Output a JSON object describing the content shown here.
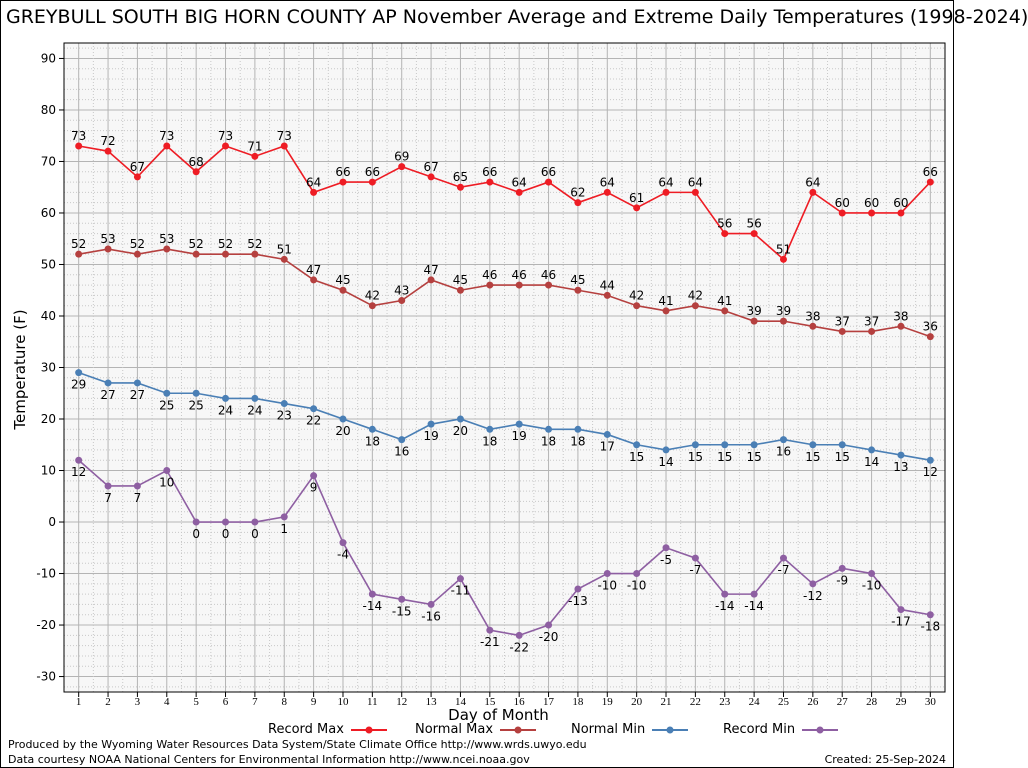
{
  "title": "GREYBULL SOUTH BIG HORN COUNTY AP November Average and Extreme Daily Temperatures (1998-2024)",
  "footer": {
    "line1": "Produced by the Wyoming Water Resources Data System/State Climate Office http://www.wrds.uwyo.edu",
    "line2": "Data courtesy NOAA National Centers for Environmental Information http://www.ncei.noaa.gov",
    "created": "Created:  25-Sep-2024"
  },
  "chart_data": {
    "type": "line",
    "xlabel": "Day of Month",
    "ylabel": "Temperature (F)",
    "ylim": [
      -33,
      93
    ],
    "xlim": [
      0.5,
      30.5
    ],
    "yticks": [
      -30,
      -20,
      -10,
      0,
      10,
      20,
      30,
      40,
      50,
      60,
      70,
      80,
      90
    ],
    "x": [
      1,
      2,
      3,
      4,
      5,
      6,
      7,
      8,
      9,
      10,
      11,
      12,
      13,
      14,
      15,
      16,
      17,
      18,
      19,
      20,
      21,
      22,
      23,
      24,
      25,
      26,
      27,
      28,
      29,
      30
    ],
    "grid": true,
    "legend_position": "bottom",
    "series": [
      {
        "name": "Record Max",
        "color": "#ee1c24",
        "label_position": "above",
        "values": [
          73,
          72,
          67,
          73,
          68,
          73,
          71,
          73,
          64,
          66,
          66,
          69,
          67,
          65,
          66,
          64,
          66,
          62,
          64,
          61,
          64,
          64,
          56,
          56,
          51,
          64,
          60,
          60,
          60,
          66
        ]
      },
      {
        "name": "Normal Max",
        "color": "#b5403f",
        "label_position": "above",
        "values": [
          52,
          53,
          52,
          53,
          52,
          52,
          52,
          51,
          47,
          45,
          42,
          43,
          47,
          45,
          46,
          46,
          46,
          45,
          44,
          42,
          41,
          42,
          41,
          39,
          39,
          38,
          37,
          37,
          38,
          36
        ]
      },
      {
        "name": "Normal Min",
        "color": "#4a7fb5",
        "label_position": "below",
        "values": [
          29,
          27,
          27,
          25,
          25,
          24,
          24,
          23,
          22,
          20,
          18,
          16,
          19,
          20,
          18,
          19,
          18,
          18,
          17,
          15,
          14,
          15,
          15,
          15,
          16,
          15,
          15,
          14,
          13,
          12
        ]
      },
      {
        "name": "Record Min",
        "color": "#8e5fa2",
        "label_position": "below",
        "values": [
          12,
          7,
          7,
          10,
          0,
          0,
          0,
          1,
          9,
          -4,
          -14,
          -15,
          -16,
          -11,
          -21,
          -22,
          -20,
          -13,
          -10,
          -10,
          -5,
          -7,
          -14,
          -14,
          -7,
          -12,
          -9,
          -10,
          -17,
          -18
        ]
      }
    ]
  }
}
